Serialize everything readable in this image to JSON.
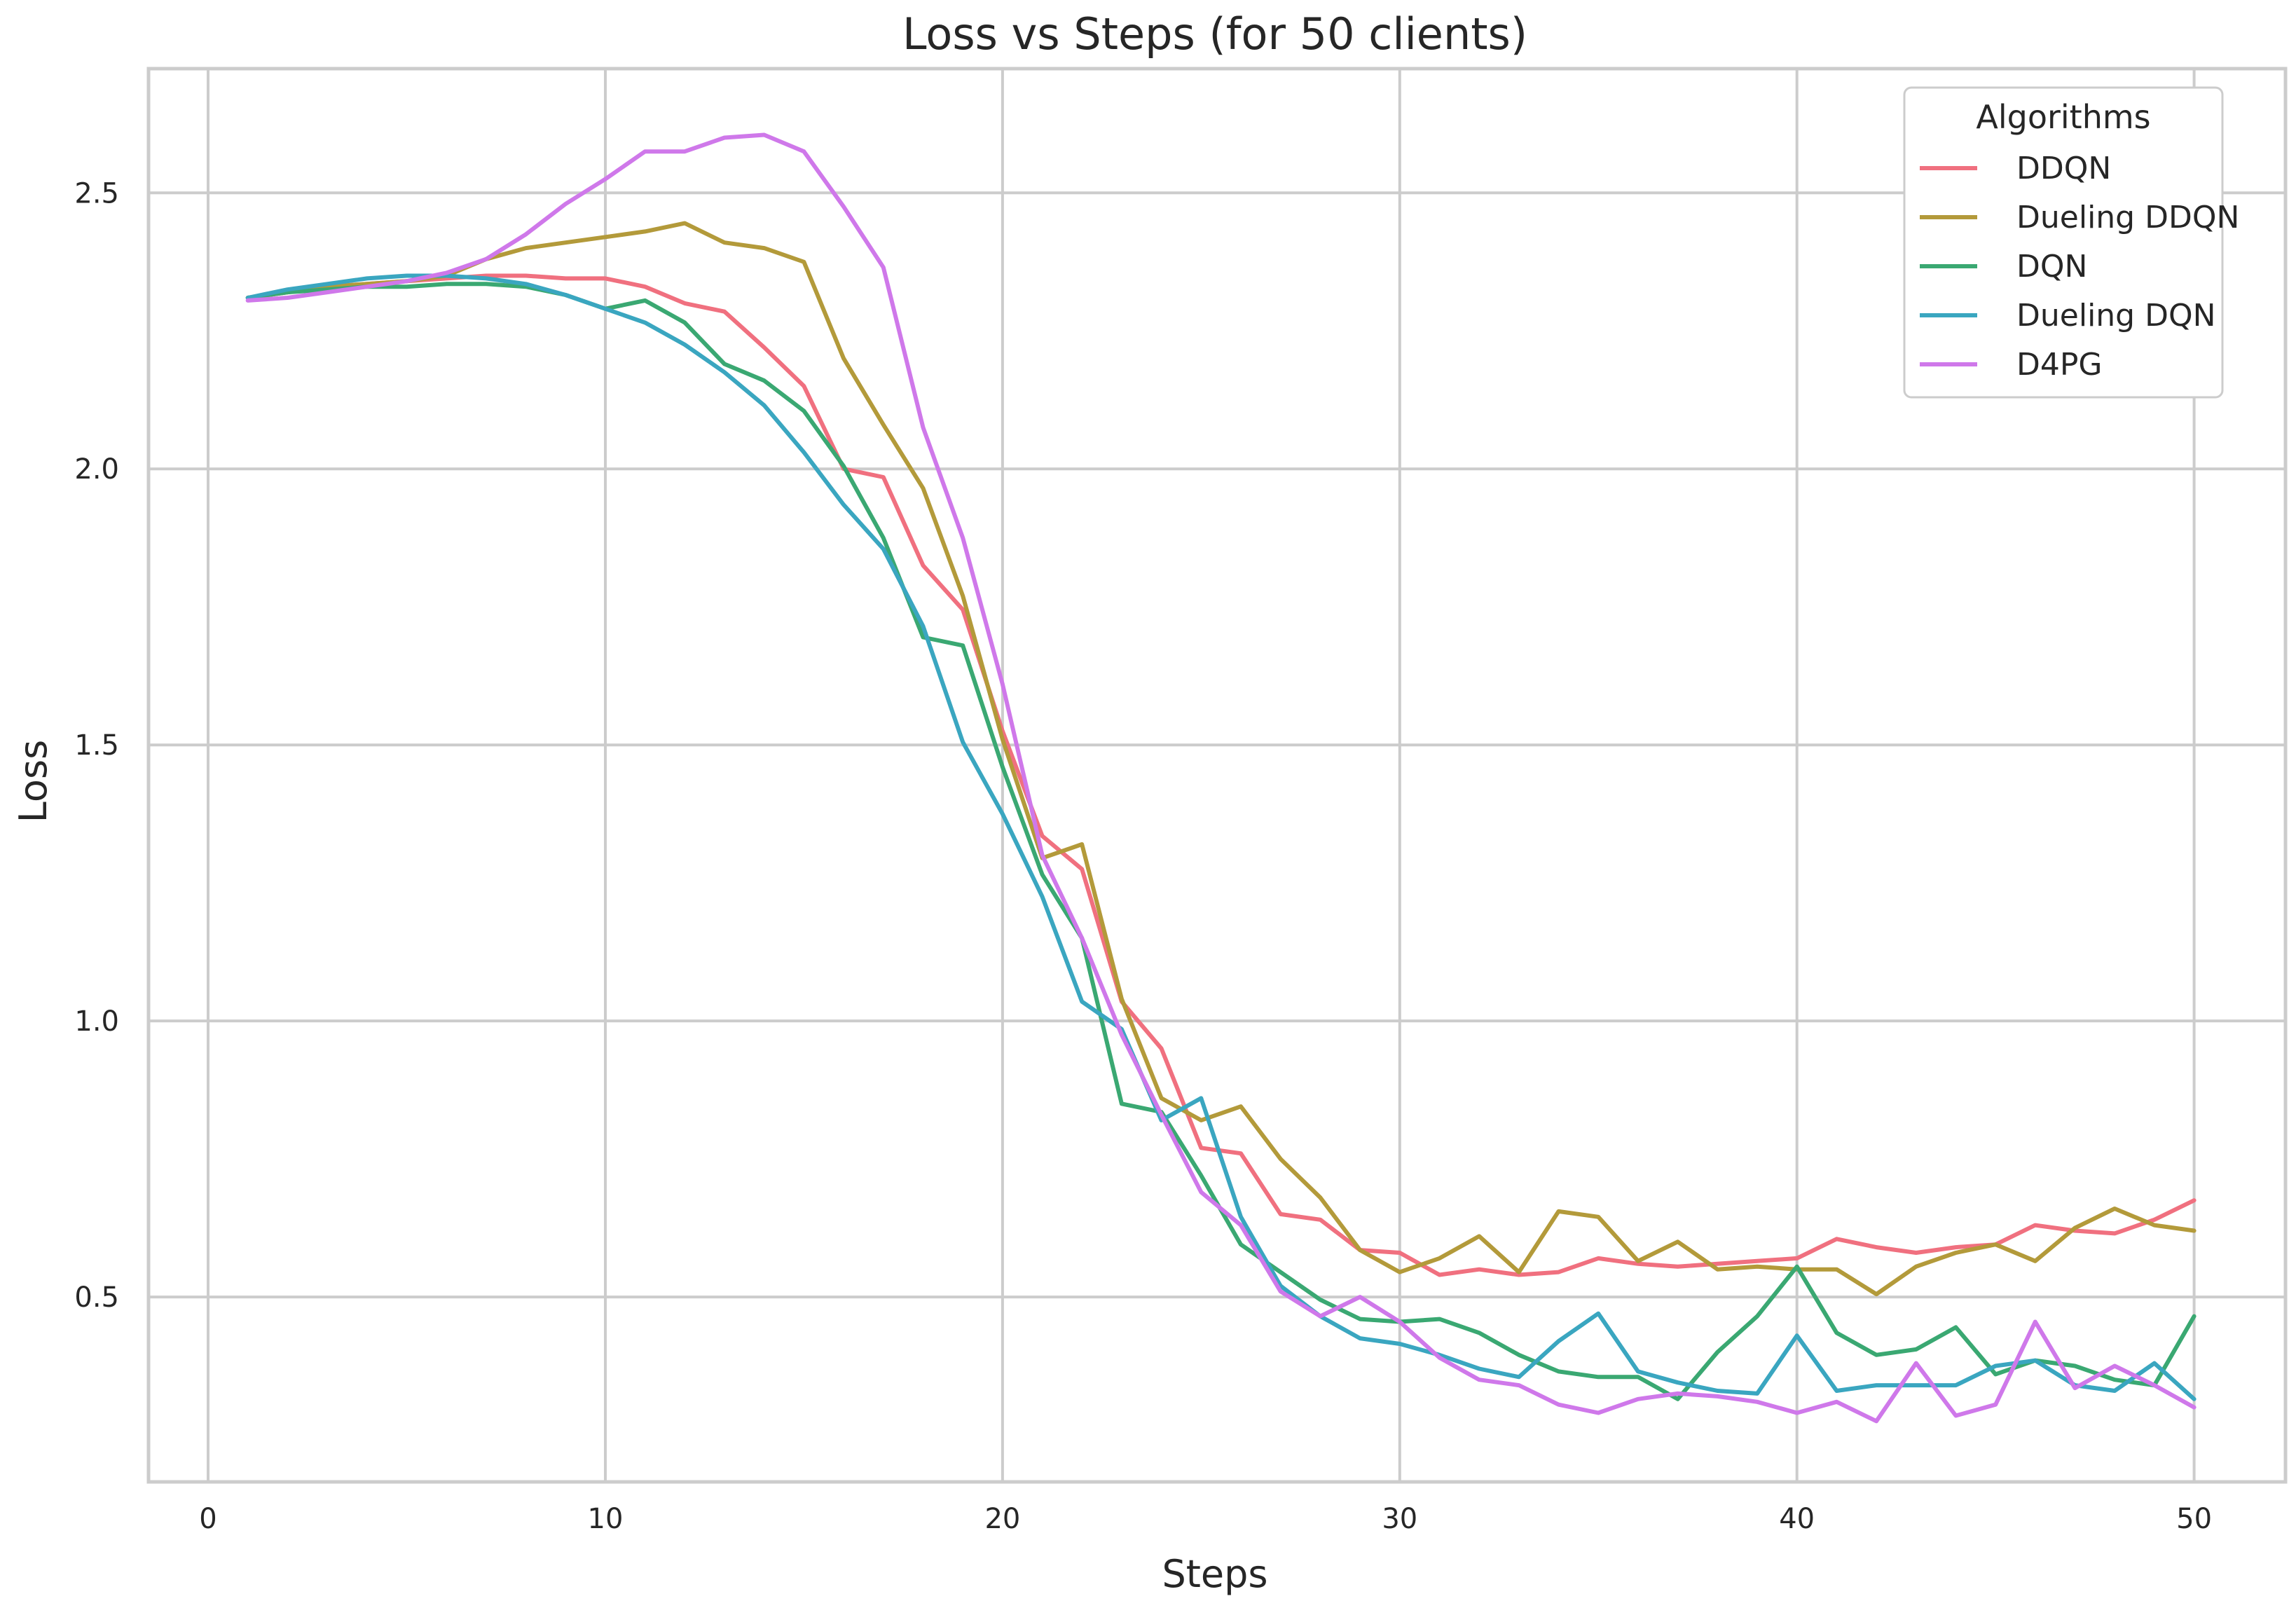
{
  "chart_data": {
    "type": "line",
    "title": "Loss vs Steps (for 50 clients)",
    "xlabel": "Steps",
    "ylabel": "Loss",
    "xlim": [
      -1.5,
      52.3
    ],
    "ylim": [
      0.165,
      2.725
    ],
    "xticks": [
      0,
      10,
      20,
      30,
      40,
      50
    ],
    "yticks": [
      0.5,
      1.0,
      1.5,
      2.0,
      2.5
    ],
    "xtick_labels": [
      "0",
      "10",
      "20",
      "30",
      "40",
      "50"
    ],
    "ytick_labels": [
      "0.5",
      "1.0",
      "1.5",
      "2.0",
      "2.5"
    ],
    "grid": true,
    "legend": {
      "title": "Algorithms",
      "position": "top-right"
    },
    "x": [
      1,
      2,
      3,
      4,
      5,
      6,
      7,
      8,
      9,
      10,
      11,
      12,
      13,
      14,
      15,
      16,
      17,
      18,
      19,
      20,
      21,
      22,
      23,
      24,
      25,
      26,
      27,
      28,
      29,
      30,
      31,
      32,
      33,
      34,
      35,
      36,
      37,
      38,
      39,
      40,
      41,
      42,
      43,
      44,
      45,
      46,
      47,
      48,
      49,
      50
    ],
    "series": [
      {
        "name": "DDQN",
        "color": "#f0707f",
        "values": [
          2.31,
          2.32,
          2.33,
          2.335,
          2.34,
          2.345,
          2.35,
          2.35,
          2.345,
          2.345,
          2.33,
          2.3,
          2.285,
          2.22,
          2.15,
          2.0,
          1.985,
          1.825,
          1.745,
          1.525,
          1.335,
          1.275,
          1.035,
          0.95,
          0.77,
          0.76,
          0.65,
          0.64,
          0.585,
          0.58,
          0.54,
          0.55,
          0.54,
          0.545,
          0.57,
          0.56,
          0.555,
          0.56,
          0.565,
          0.57,
          0.605,
          0.59,
          0.58,
          0.59,
          0.595,
          0.63,
          0.62,
          0.615,
          0.64,
          0.675
        ]
      },
      {
        "name": "Dueling DDQN",
        "color": "#b39a3a",
        "values": [
          2.31,
          2.32,
          2.33,
          2.335,
          2.34,
          2.35,
          2.38,
          2.4,
          2.41,
          2.42,
          2.43,
          2.445,
          2.41,
          2.4,
          2.375,
          2.2,
          2.08,
          1.965,
          1.77,
          1.51,
          1.295,
          1.32,
          1.04,
          0.86,
          0.82,
          0.845,
          0.75,
          0.68,
          0.585,
          0.545,
          0.57,
          0.61,
          0.545,
          0.655,
          0.645,
          0.565,
          0.6,
          0.55,
          0.555,
          0.55,
          0.55,
          0.505,
          0.555,
          0.58,
          0.595,
          0.565,
          0.625,
          0.66,
          0.63,
          0.62
        ]
      },
      {
        "name": "DQN",
        "color": "#3aa872",
        "values": [
          2.31,
          2.32,
          2.325,
          2.33,
          2.33,
          2.335,
          2.335,
          2.33,
          2.315,
          2.29,
          2.305,
          2.265,
          2.19,
          2.16,
          2.105,
          2.005,
          1.875,
          1.695,
          1.68,
          1.46,
          1.265,
          1.15,
          0.85,
          0.835,
          0.72,
          0.595,
          0.545,
          0.495,
          0.46,
          0.455,
          0.46,
          0.435,
          0.395,
          0.365,
          0.355,
          0.355,
          0.315,
          0.4,
          0.465,
          0.555,
          0.435,
          0.395,
          0.405,
          0.445,
          0.36,
          0.385,
          0.375,
          0.35,
          0.34,
          0.465
        ]
      },
      {
        "name": "Dueling DQN",
        "color": "#3aa6c0",
        "values": [
          2.31,
          2.325,
          2.335,
          2.345,
          2.35,
          2.35,
          2.345,
          2.335,
          2.315,
          2.29,
          2.265,
          2.225,
          2.175,
          2.115,
          2.03,
          1.935,
          1.855,
          1.715,
          1.505,
          1.375,
          1.225,
          1.035,
          0.985,
          0.82,
          0.86,
          0.645,
          0.52,
          0.465,
          0.425,
          0.415,
          0.395,
          0.37,
          0.355,
          0.42,
          0.47,
          0.365,
          0.345,
          0.33,
          0.325,
          0.43,
          0.33,
          0.34,
          0.34,
          0.34,
          0.375,
          0.385,
          0.34,
          0.33,
          0.38,
          0.315
        ]
      },
      {
        "name": "D4PG",
        "color": "#cf78ea",
        "values": [
          2.305,
          2.31,
          2.32,
          2.33,
          2.34,
          2.355,
          2.38,
          2.425,
          2.48,
          2.525,
          2.575,
          2.575,
          2.6,
          2.605,
          2.575,
          2.475,
          2.365,
          2.075,
          1.875,
          1.61,
          1.3,
          1.15,
          0.975,
          0.83,
          0.69,
          0.63,
          0.51,
          0.465,
          0.5,
          0.455,
          0.39,
          0.35,
          0.34,
          0.305,
          0.29,
          0.315,
          0.325,
          0.32,
          0.31,
          0.29,
          0.31,
          0.275,
          0.38,
          0.285,
          0.305,
          0.455,
          0.335,
          0.375,
          0.34,
          0.3
        ]
      }
    ]
  }
}
